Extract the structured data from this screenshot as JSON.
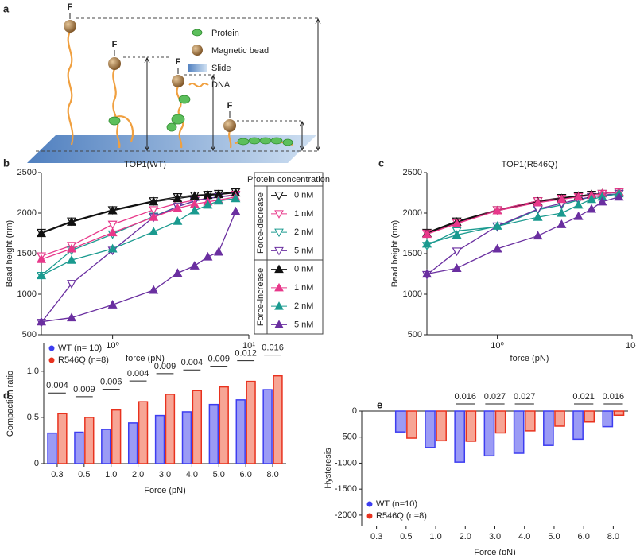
{
  "panel_letters": [
    "a",
    "b",
    "c",
    "d",
    "e"
  ],
  "diagram": {
    "force_labels": [
      "F",
      "F",
      "F",
      "F"
    ],
    "legend": [
      "Protein",
      "Magnetic bead",
      "Slide",
      "DNA"
    ]
  },
  "chart_data": [
    {
      "type": "line",
      "title": "TOP1(WT)",
      "x_label": "force (pN)",
      "y_label": "Bead height (nm)",
      "log_x": true,
      "x": [
        0.3,
        0.5,
        1,
        2,
        3,
        4,
        5,
        6,
        8
      ],
      "xlim": [
        0.3,
        10
      ],
      "xticks": [
        {
          "value": 1,
          "label": "10⁰"
        },
        {
          "value": 10,
          "label": "10¹"
        }
      ],
      "ylim": [
        500,
        2500
      ],
      "yticks": [
        500,
        1000,
        1500,
        2000,
        2500
      ],
      "legend_title": "Protein concentration",
      "series_groups": [
        {
          "name": "Force-decrease",
          "marker": "open-down",
          "series": [
            {
              "name": "0 nM",
              "color": "#111111",
              "values": [
                1760,
                1900,
                2040,
                2150,
                2200,
                2220,
                2230,
                2240,
                2260
              ]
            },
            {
              "name": "1 nM",
              "color": "#e8388a",
              "values": [
                1470,
                1600,
                1860,
                2040,
                2120,
                2160,
                2180,
                2200,
                2230
              ]
            },
            {
              "name": "2 nM",
              "color": "#1a9a8f",
              "values": [
                1230,
                1540,
                1740,
                1960,
                2080,
                2150,
                2180,
                2200,
                2220
              ]
            },
            {
              "name": "5 nM",
              "color": "#6a2fa0",
              "values": [
                650,
                1130,
                1540,
                1950,
                2080,
                2150,
                2180,
                2200,
                2220
              ]
            }
          ]
        },
        {
          "name": "Force-increase",
          "marker": "filled-up",
          "series": [
            {
              "name": "0 nM",
              "color": "#111111",
              "values": [
                1750,
                1890,
                2030,
                2140,
                2180,
                2210,
                2220,
                2230,
                2250
              ]
            },
            {
              "name": "1 nM",
              "color": "#e8388a",
              "values": [
                1430,
                1560,
                1760,
                1950,
                2060,
                2110,
                2140,
                2160,
                2200
              ]
            },
            {
              "name": "2 nM",
              "color": "#1a9a8f",
              "values": [
                1230,
                1420,
                1560,
                1770,
                1900,
                2030,
                2100,
                2150,
                2180
              ]
            },
            {
              "name": "5 nM",
              "color": "#6a2fa0",
              "values": [
                660,
                710,
                870,
                1050,
                1260,
                1350,
                1460,
                1520,
                2020
              ]
            }
          ]
        }
      ]
    },
    {
      "type": "line",
      "title": "TOP1(R546Q)",
      "x_label": "force (pN)",
      "y_label": "Bead height (nm)",
      "log_x": true,
      "x": [
        0.3,
        0.5,
        1,
        2,
        3,
        4,
        5,
        6,
        8
      ],
      "xlim": [
        0.3,
        10
      ],
      "xticks": [
        {
          "value": 1,
          "label": "10⁰"
        },
        {
          "value": 10,
          "label": "10¹"
        }
      ],
      "ylim": [
        500,
        2500
      ],
      "yticks": [
        500,
        1000,
        1500,
        2000,
        2500
      ],
      "series_groups": [
        {
          "marker": "open-down",
          "series": [
            {
              "color": "#111111",
              "values": [
                1760,
                1900,
                2040,
                2150,
                2190,
                2210,
                2230,
                2240,
                2260
              ]
            },
            {
              "color": "#e8388a",
              "values": [
                1750,
                1880,
                2040,
                2150,
                2180,
                2200,
                2220,
                2240,
                2260
              ]
            },
            {
              "color": "#1a9a8f",
              "values": [
                1600,
                1780,
                1830,
                2040,
                2100,
                2160,
                2200,
                2220,
                2240
              ]
            },
            {
              "color": "#6a2fa0",
              "values": [
                1240,
                1530,
                1840,
                2050,
                2120,
                2170,
                2200,
                2220,
                2240
              ]
            }
          ]
        },
        {
          "marker": "filled-up",
          "series": [
            {
              "color": "#111111",
              "values": [
                1750,
                1890,
                2030,
                2140,
                2180,
                2210,
                2230,
                2240,
                2260
              ]
            },
            {
              "color": "#e8388a",
              "values": [
                1740,
                1870,
                2030,
                2130,
                2170,
                2200,
                2220,
                2240,
                2260
              ]
            },
            {
              "color": "#1a9a8f",
              "values": [
                1620,
                1730,
                1840,
                1950,
                2000,
                2100,
                2170,
                2200,
                2240
              ]
            },
            {
              "color": "#6a2fa0",
              "values": [
                1250,
                1320,
                1560,
                1720,
                1860,
                1960,
                2050,
                2140,
                2200
              ]
            }
          ]
        }
      ]
    },
    {
      "type": "bar",
      "x_label": "Force (pN)",
      "y_label": "Compaction ratio",
      "categories": [
        "0.3",
        "0.5",
        "1.0",
        "2.0",
        "3.0",
        "4.0",
        "5.0",
        "6.0",
        "8.0"
      ],
      "ylim": [
        0,
        1.3
      ],
      "yticks": [
        0,
        0.5,
        {
          "value": 1,
          "label": "1.0"
        }
      ],
      "legend_position": "top-left",
      "series": [
        {
          "name": "WT (n= 10)",
          "color": "#9b9bf5",
          "edge_color": "#3d3df0",
          "values": [
            0.33,
            0.34,
            0.37,
            0.44,
            0.52,
            0.56,
            0.64,
            0.69,
            0.8
          ]
        },
        {
          "name": "R546Q (n=8)",
          "color": "#f7a595",
          "edge_color": "#e8321e",
          "values": [
            0.54,
            0.5,
            0.58,
            0.67,
            0.75,
            0.79,
            0.83,
            0.89,
            0.95
          ]
        }
      ],
      "annotations": [
        "0.004",
        "0.009",
        "0.006",
        "0.004",
        "0.009",
        "0.004",
        "0.009",
        "0.012",
        "0.016"
      ]
    },
    {
      "type": "bar",
      "x_label": "Force (pN)",
      "y_label": "Hysteresis",
      "categories": [
        "0.3",
        "0.5",
        "1.0",
        "2.0",
        "3.0",
        "4.0",
        "5.0",
        "6.0",
        "8.0"
      ],
      "ylim": [
        -2200,
        0
      ],
      "yticks": [
        0,
        -500,
        -1000,
        -1500,
        -2000
      ],
      "legend_position": "bottom-left",
      "series": [
        {
          "name": "WT (n=10)",
          "color": "#9b9bf5",
          "edge_color": "#3d3df0",
          "values": [
            0,
            -400,
            -700,
            -980,
            -860,
            -810,
            -660,
            -540,
            -300
          ]
        },
        {
          "name": "R546Q (n=8)",
          "color": "#f7a595",
          "edge_color": "#e8321e",
          "values": [
            0,
            -520,
            -570,
            -580,
            -420,
            -380,
            -290,
            -210,
            -80
          ]
        }
      ],
      "annotations": [
        null,
        null,
        null,
        "0.016",
        "0.027",
        "0.027",
        null,
        "0.021",
        "0.016"
      ]
    }
  ]
}
